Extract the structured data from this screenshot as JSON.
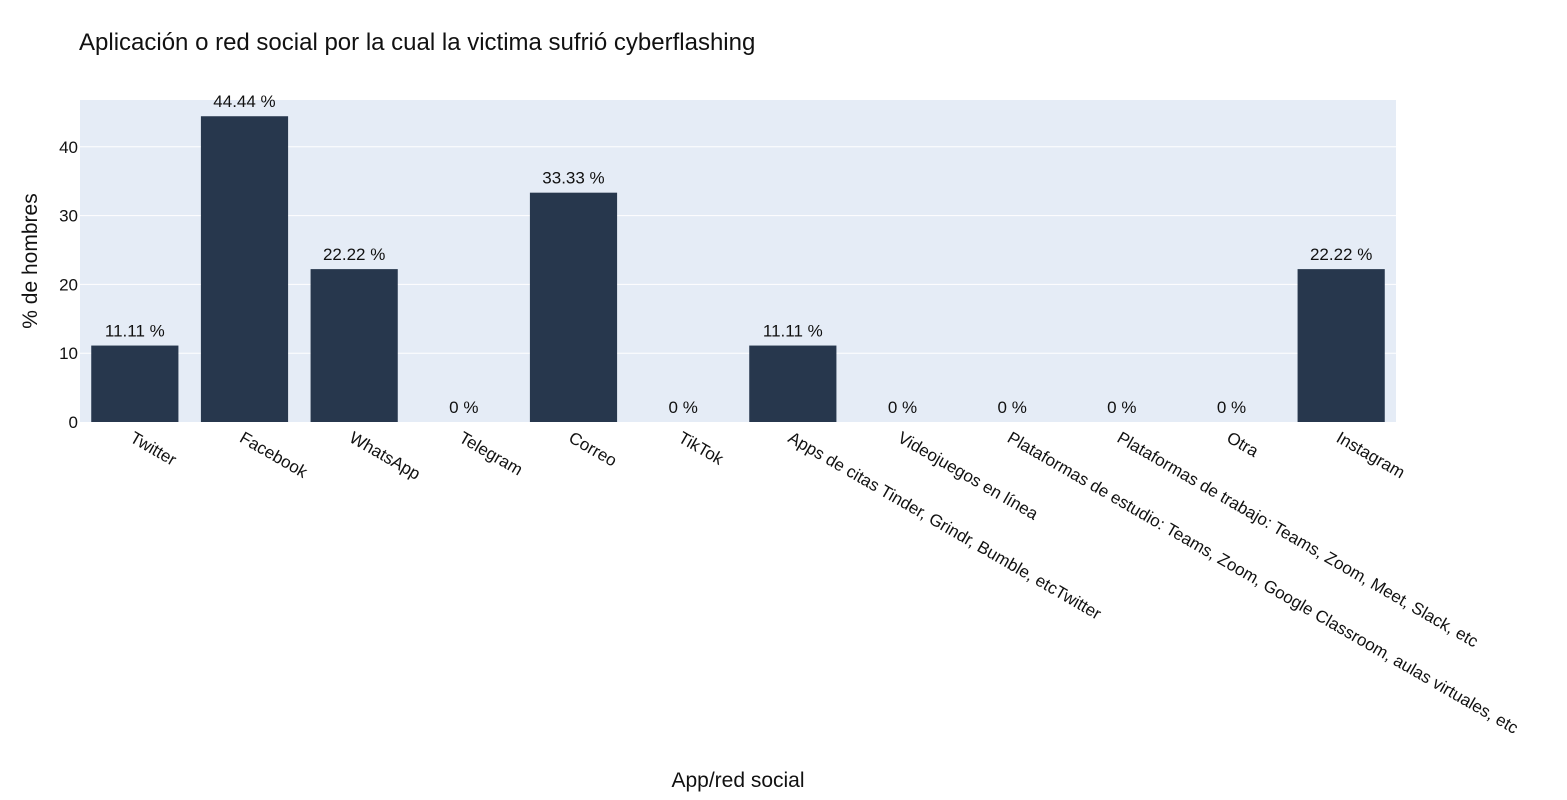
{
  "chart_data": {
    "type": "bar",
    "title": "Aplicación o red social por la cual la victima sufrió cyberflashing",
    "xlabel": "App/red social",
    "ylabel": "% de hombres",
    "categories": [
      "Twitter",
      "Facebook",
      "WhatsApp",
      "Telegram",
      "Correo",
      "TikTok",
      "Apps de citas Tinder, Grindr, Bumble, etcTwitter",
      "Videojuegos en línea",
      "Plataformas de estudio: Teams, Zoom, Google Classroom, aulas virtuales, etc",
      "Plataformas de trabajo: Teams, Zoom, Meet, Slack, etc",
      "Otra",
      "Instagram"
    ],
    "values": [
      11.11,
      44.44,
      22.22,
      0,
      33.33,
      0,
      11.11,
      0,
      0,
      0,
      0,
      22.22
    ],
    "data_labels": [
      "11.11 %",
      "44.44 %",
      "22.22 %",
      "0 %",
      "33.33 %",
      "0 %",
      "11.11 %",
      "0 %",
      "0 %",
      "0 %",
      "0 %",
      "22.22 %"
    ],
    "y_ticks": [
      0,
      10,
      20,
      30,
      40
    ],
    "ylim": [
      0,
      46.8
    ],
    "grid": true,
    "colors": {
      "bar": "#27374d",
      "plot_bg": "#e5ecf6",
      "grid": "#ffffff"
    }
  }
}
